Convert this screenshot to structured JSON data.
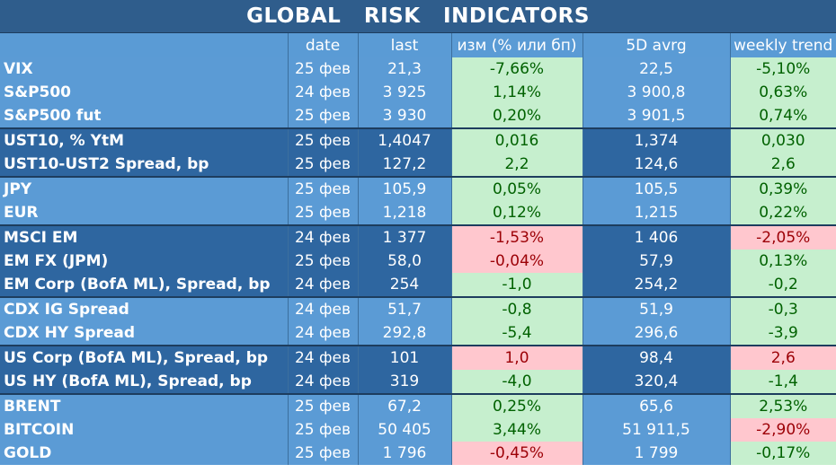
{
  "title": [
    "GLOBAL",
    "RISK",
    "INDICATORS"
  ],
  "headers": [
    "",
    "date",
    "last",
    "изм (% или бп)",
    "5D avrg",
    "weekly trend"
  ],
  "rows": [
    {
      "name": "VIX",
      "date": "25 фев",
      "last": "21,3",
      "chg": "-7,66%",
      "chg_s": "pos",
      "avg": "22,5",
      "trend": "-5,10%",
      "trend_s": "pos",
      "group": "light",
      "sep": false
    },
    {
      "name": "S&P500",
      "date": "24 фев",
      "last": "3 925",
      "chg": "1,14%",
      "chg_s": "pos",
      "avg": "3 900,8",
      "trend": "0,63%",
      "trend_s": "pos",
      "group": "light",
      "sep": false
    },
    {
      "name": "S&P500 fut",
      "date": "25 фев",
      "last": "3 930",
      "chg": "0,20%",
      "chg_s": "pos",
      "avg": "3 901,5",
      "trend": "0,74%",
      "trend_s": "pos",
      "group": "light",
      "sep": false
    },
    {
      "name": "UST10, % YtM",
      "date": "25 фев",
      "last": "1,4047",
      "chg": "0,016",
      "chg_s": "pos",
      "avg": "1,374",
      "trend": "0,030",
      "trend_s": "pos",
      "group": "dark",
      "sep": true
    },
    {
      "name": "UST10-UST2 Spread, bp",
      "date": "25 фев",
      "last": "127,2",
      "chg": "2,2",
      "chg_s": "pos",
      "avg": "124,6",
      "trend": "2,6",
      "trend_s": "pos",
      "group": "dark",
      "sep": false
    },
    {
      "name": "JPY",
      "date": "25 фев",
      "last": "105,9",
      "chg": "0,05%",
      "chg_s": "pos",
      "avg": "105,5",
      "trend": "0,39%",
      "trend_s": "pos",
      "group": "light",
      "sep": true
    },
    {
      "name": "EUR",
      "date": "25 фев",
      "last": "1,218",
      "chg": "0,12%",
      "chg_s": "pos",
      "avg": "1,215",
      "trend": "0,22%",
      "trend_s": "pos",
      "group": "light",
      "sep": false
    },
    {
      "name": "MSCI EM",
      "date": "24 фев",
      "last": "1 377",
      "chg": "-1,53%",
      "chg_s": "neg",
      "avg": "1 406",
      "trend": "-2,05%",
      "trend_s": "neg",
      "group": "dark",
      "sep": true
    },
    {
      "name": "EM FX (JPM)",
      "date": "25 фев",
      "last": "58,0",
      "chg": "-0,04%",
      "chg_s": "neg",
      "avg": "57,9",
      "trend": "0,13%",
      "trend_s": "pos",
      "group": "dark",
      "sep": false
    },
    {
      "name": "EM Corp (BofA ML), Spread, bp",
      "date": "24 фев",
      "last": "254",
      "chg": "-1,0",
      "chg_s": "pos",
      "avg": "254,2",
      "trend": "-0,2",
      "trend_s": "pos",
      "group": "dark",
      "sep": false
    },
    {
      "name": "CDX IG Spread",
      "date": "24 фев",
      "last": "51,7",
      "chg": "-0,8",
      "chg_s": "pos",
      "avg": "51,9",
      "trend": "-0,3",
      "trend_s": "pos",
      "group": "light",
      "sep": true
    },
    {
      "name": "CDX HY Spread",
      "date": "24 фев",
      "last": "292,8",
      "chg": "-5,4",
      "chg_s": "pos",
      "avg": "296,6",
      "trend": "-3,9",
      "trend_s": "pos",
      "group": "light",
      "sep": false
    },
    {
      "name": "US Corp (BofA ML), Spread, bp",
      "date": "24 фев",
      "last": "101",
      "chg": "1,0",
      "chg_s": "neg",
      "avg": "98,4",
      "trend": "2,6",
      "trend_s": "neg",
      "group": "dark",
      "sep": true
    },
    {
      "name": "US HY (BofA ML), Spread, bp",
      "date": "24 фев",
      "last": "319",
      "chg": "-4,0",
      "chg_s": "pos",
      "avg": "320,4",
      "trend": "-1,4",
      "trend_s": "pos",
      "group": "dark",
      "sep": false
    },
    {
      "name": "BRENT",
      "date": "25 фев",
      "last": "67,2",
      "chg": "0,25%",
      "chg_s": "pos",
      "avg": "65,6",
      "trend": "2,53%",
      "trend_s": "pos",
      "group": "light",
      "sep": true
    },
    {
      "name": "BITCOIN",
      "date": "25 фев",
      "last": "50 405",
      "chg": "3,44%",
      "chg_s": "pos",
      "avg": "51 911,5",
      "trend": "-2,90%",
      "trend_s": "neg",
      "group": "light",
      "sep": false
    },
    {
      "name": "GOLD",
      "date": "25 фев",
      "last": "1 796",
      "chg": "-0,45%",
      "chg_s": "neg",
      "avg": "1 799",
      "trend": "-0,17%",
      "trend_s": "pos",
      "group": "light",
      "sep": false
    }
  ]
}
